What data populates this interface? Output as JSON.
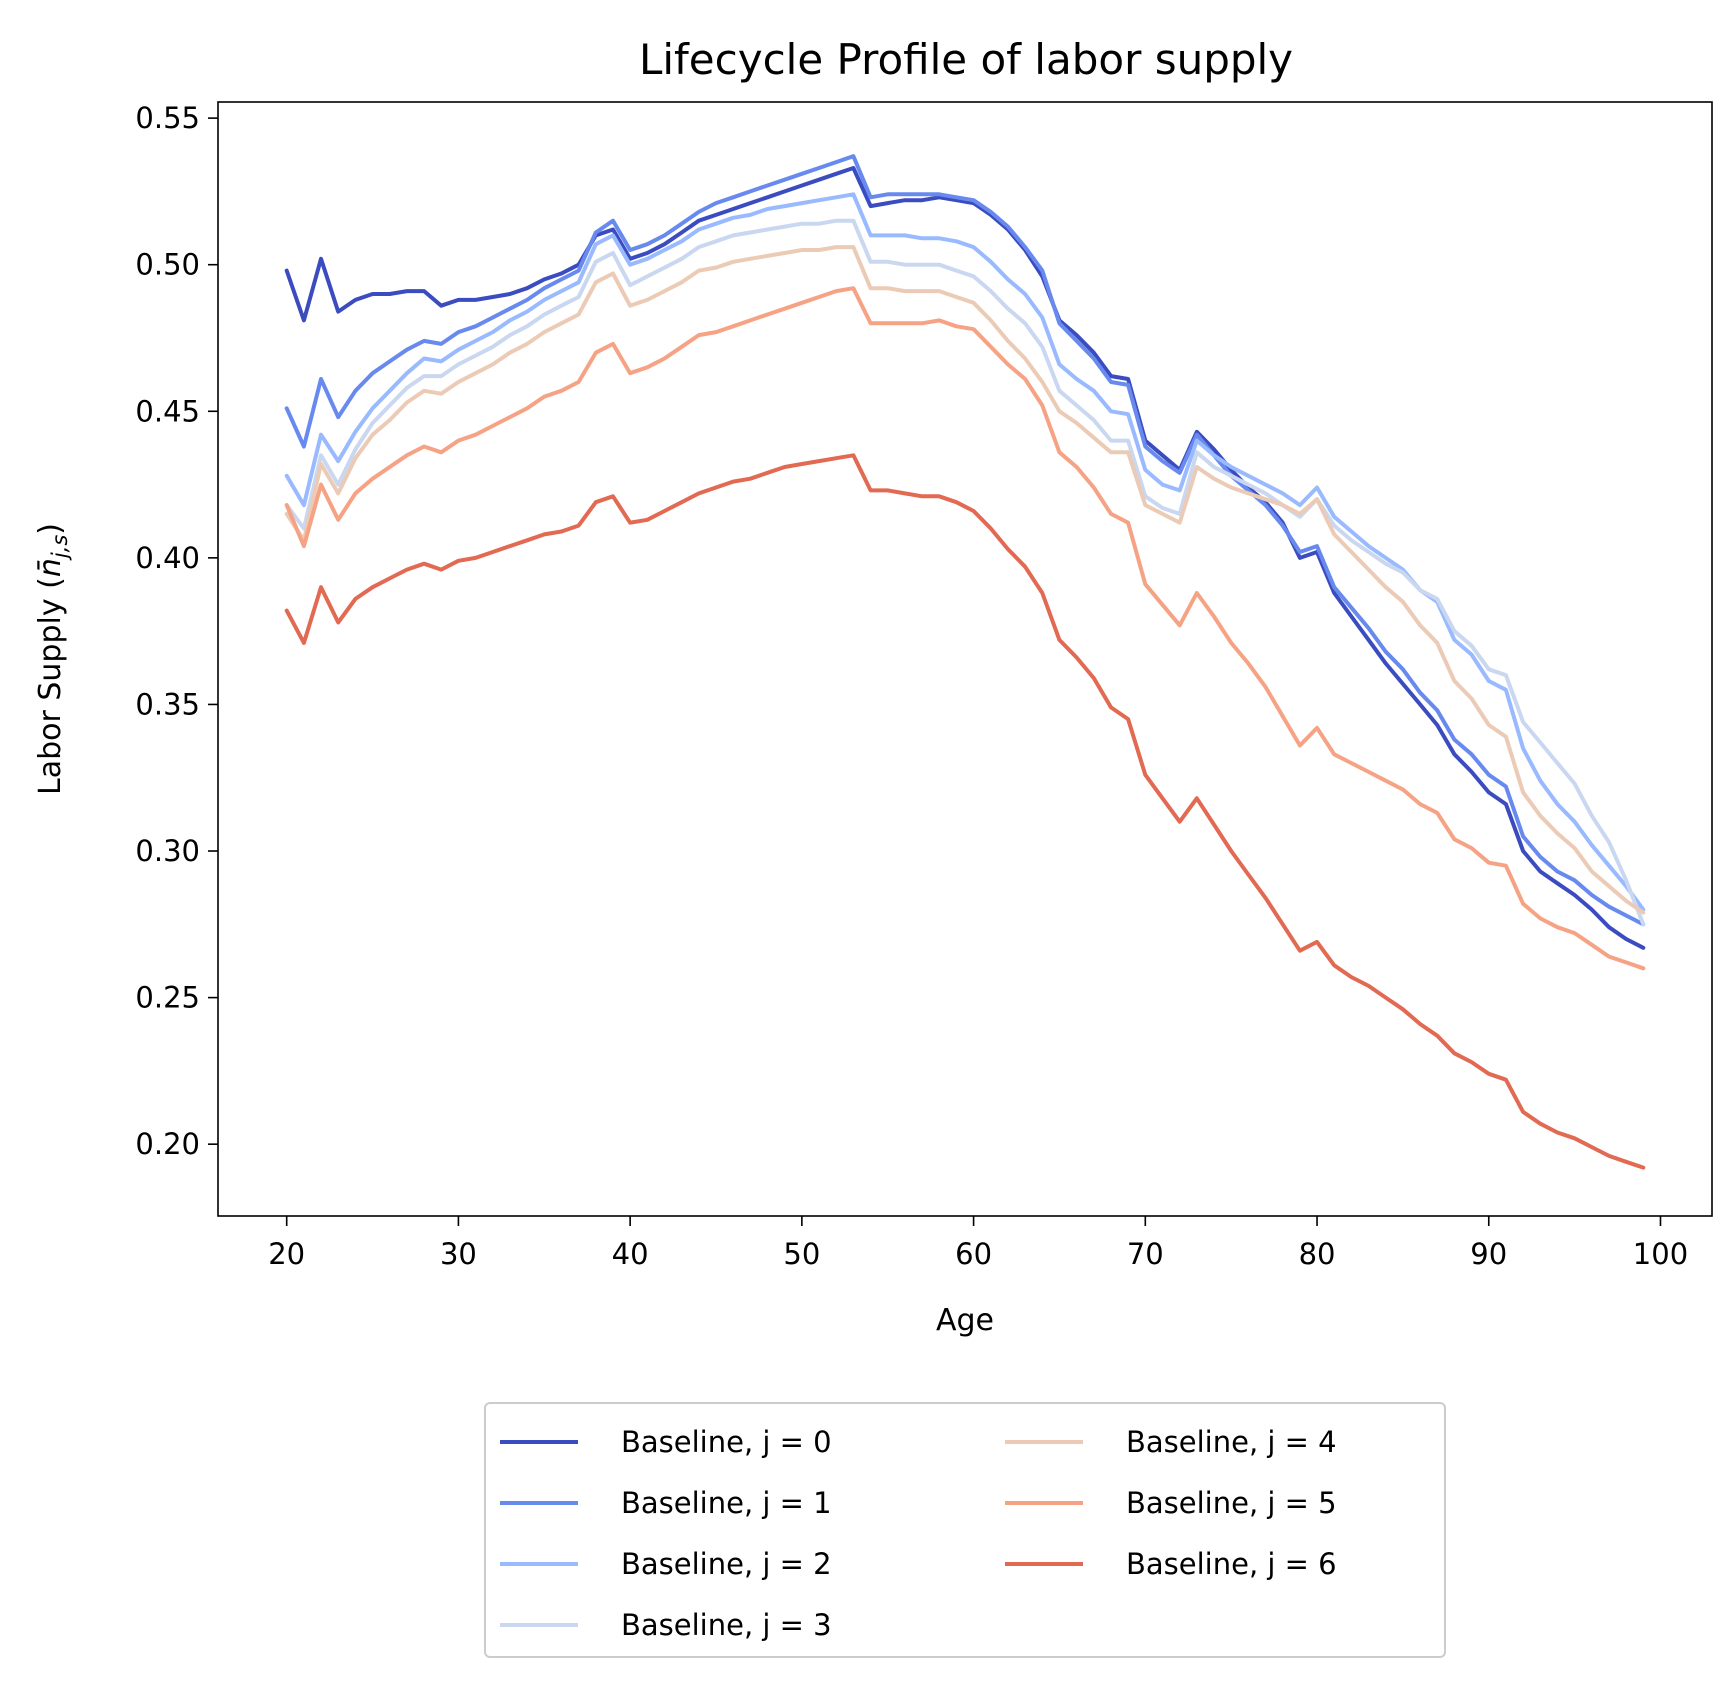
{
  "chart_data": {
    "type": "line",
    "title": "Lifecycle Profile of labor supply",
    "xlabel": "Age",
    "ylabel": "Labor Supply",
    "ylabel_symbol": "n̄",
    "ylabel_subscript": "j,s",
    "xlim": [
      16,
      103
    ],
    "ylim": [
      0.1755,
      0.5555
    ],
    "xticks": [
      20,
      30,
      40,
      50,
      60,
      70,
      80,
      90,
      100
    ],
    "yticks": [
      0.2,
      0.25,
      0.3,
      0.35,
      0.4,
      0.45,
      0.5,
      0.55
    ],
    "legend_position": "below",
    "grid": false,
    "x": [
      20,
      21,
      22,
      23,
      24,
      25,
      26,
      27,
      28,
      29,
      30,
      31,
      32,
      33,
      34,
      35,
      36,
      37,
      38,
      39,
      40,
      41,
      42,
      43,
      44,
      45,
      46,
      47,
      48,
      49,
      50,
      51,
      52,
      53,
      54,
      55,
      56,
      57,
      58,
      59,
      60,
      61,
      62,
      63,
      64,
      65,
      66,
      67,
      68,
      69,
      70,
      71,
      72,
      73,
      74,
      75,
      76,
      77,
      78,
      79,
      80,
      81,
      82,
      83,
      84,
      85,
      86,
      87,
      88,
      89,
      90,
      91,
      92,
      93,
      94,
      95,
      96,
      97,
      98,
      99
    ],
    "series": [
      {
        "name": "Baseline, j = 0",
        "color": "#3b4cc0",
        "values": [
          0.498,
          0.481,
          0.502,
          0.484,
          0.488,
          0.49,
          0.49,
          0.491,
          0.491,
          0.486,
          0.488,
          0.488,
          0.489,
          0.49,
          0.492,
          0.495,
          0.497,
          0.5,
          0.51,
          0.512,
          0.502,
          0.504,
          0.507,
          0.511,
          0.515,
          0.517,
          0.519,
          0.521,
          0.523,
          0.525,
          0.527,
          0.529,
          0.531,
          0.533,
          0.52,
          0.521,
          0.522,
          0.522,
          0.523,
          0.522,
          0.521,
          0.517,
          0.512,
          0.505,
          0.496,
          0.481,
          0.476,
          0.47,
          0.462,
          0.461,
          0.44,
          0.435,
          0.43,
          0.443,
          0.437,
          0.43,
          0.424,
          0.419,
          0.412,
          0.4,
          0.402,
          0.388,
          0.38,
          0.372,
          0.364,
          0.357,
          0.35,
          0.343,
          0.333,
          0.327,
          0.32,
          0.316,
          0.3,
          0.293,
          0.289,
          0.285,
          0.28,
          0.274,
          0.27,
          0.267
        ]
      },
      {
        "name": "Baseline, j = 1",
        "color": "#688aef",
        "values": [
          0.451,
          0.438,
          0.461,
          0.448,
          0.457,
          0.463,
          0.467,
          0.471,
          0.474,
          0.473,
          0.477,
          0.479,
          0.482,
          0.485,
          0.488,
          0.492,
          0.495,
          0.498,
          0.511,
          0.515,
          0.505,
          0.507,
          0.51,
          0.514,
          0.518,
          0.521,
          0.523,
          0.525,
          0.527,
          0.529,
          0.531,
          0.533,
          0.535,
          0.537,
          0.523,
          0.524,
          0.524,
          0.524,
          0.524,
          0.523,
          0.522,
          0.518,
          0.513,
          0.506,
          0.498,
          0.48,
          0.474,
          0.468,
          0.46,
          0.459,
          0.438,
          0.433,
          0.429,
          0.442,
          0.435,
          0.428,
          0.423,
          0.418,
          0.411,
          0.402,
          0.404,
          0.39,
          0.383,
          0.376,
          0.368,
          0.362,
          0.354,
          0.348,
          0.338,
          0.333,
          0.326,
          0.322,
          0.305,
          0.298,
          0.293,
          0.29,
          0.285,
          0.281,
          0.278,
          0.275
        ]
      },
      {
        "name": "Baseline, j = 2",
        "color": "#99baff",
        "values": [
          0.428,
          0.418,
          0.442,
          0.433,
          0.443,
          0.451,
          0.457,
          0.463,
          0.468,
          0.467,
          0.471,
          0.474,
          0.477,
          0.481,
          0.484,
          0.488,
          0.491,
          0.494,
          0.507,
          0.51,
          0.5,
          0.502,
          0.505,
          0.508,
          0.512,
          0.514,
          0.516,
          0.517,
          0.519,
          0.52,
          0.521,
          0.522,
          0.523,
          0.524,
          0.51,
          0.51,
          0.51,
          0.509,
          0.509,
          0.508,
          0.506,
          0.501,
          0.495,
          0.49,
          0.482,
          0.466,
          0.461,
          0.457,
          0.45,
          0.449,
          0.43,
          0.425,
          0.423,
          0.44,
          0.435,
          0.431,
          0.428,
          0.425,
          0.422,
          0.418,
          0.424,
          0.414,
          0.409,
          0.404,
          0.4,
          0.396,
          0.389,
          0.385,
          0.372,
          0.367,
          0.358,
          0.355,
          0.335,
          0.324,
          0.316,
          0.31,
          0.302,
          0.295,
          0.288,
          0.28
        ]
      },
      {
        "name": "Baseline, j = 3",
        "color": "#c9d7f0",
        "values": [
          0.418,
          0.41,
          0.435,
          0.425,
          0.437,
          0.446,
          0.452,
          0.458,
          0.462,
          0.462,
          0.466,
          0.469,
          0.472,
          0.476,
          0.479,
          0.483,
          0.486,
          0.489,
          0.501,
          0.504,
          0.493,
          0.496,
          0.499,
          0.502,
          0.506,
          0.508,
          0.51,
          0.511,
          0.512,
          0.513,
          0.514,
          0.514,
          0.515,
          0.515,
          0.501,
          0.501,
          0.5,
          0.5,
          0.5,
          0.498,
          0.496,
          0.491,
          0.485,
          0.48,
          0.472,
          0.457,
          0.452,
          0.447,
          0.44,
          0.44,
          0.421,
          0.417,
          0.415,
          0.436,
          0.431,
          0.428,
          0.425,
          0.422,
          0.418,
          0.414,
          0.42,
          0.411,
          0.406,
          0.402,
          0.398,
          0.395,
          0.389,
          0.386,
          0.375,
          0.37,
          0.362,
          0.36,
          0.344,
          0.337,
          0.33,
          0.323,
          0.312,
          0.303,
          0.29,
          0.275
        ]
      },
      {
        "name": "Baseline, j = 4",
        "color": "#eccbb6",
        "values": [
          0.415,
          0.406,
          0.432,
          0.422,
          0.434,
          0.442,
          0.447,
          0.453,
          0.457,
          0.456,
          0.46,
          0.463,
          0.466,
          0.47,
          0.473,
          0.477,
          0.48,
          0.483,
          0.494,
          0.497,
          0.486,
          0.488,
          0.491,
          0.494,
          0.498,
          0.499,
          0.501,
          0.502,
          0.503,
          0.504,
          0.505,
          0.505,
          0.506,
          0.506,
          0.492,
          0.492,
          0.491,
          0.491,
          0.491,
          0.489,
          0.487,
          0.481,
          0.474,
          0.468,
          0.46,
          0.45,
          0.446,
          0.441,
          0.436,
          0.436,
          0.418,
          0.415,
          0.412,
          0.431,
          0.427,
          0.424,
          0.422,
          0.42,
          0.418,
          0.415,
          0.42,
          0.408,
          0.402,
          0.396,
          0.39,
          0.385,
          0.377,
          0.371,
          0.358,
          0.352,
          0.343,
          0.339,
          0.32,
          0.312,
          0.306,
          0.301,
          0.293,
          0.288,
          0.283,
          0.279
        ]
      },
      {
        "name": "Baseline, j = 5",
        "color": "#f6a385",
        "values": [
          0.418,
          0.404,
          0.425,
          0.413,
          0.422,
          0.427,
          0.431,
          0.435,
          0.438,
          0.436,
          0.44,
          0.442,
          0.445,
          0.448,
          0.451,
          0.455,
          0.457,
          0.46,
          0.47,
          0.473,
          0.463,
          0.465,
          0.468,
          0.472,
          0.476,
          0.477,
          0.479,
          0.481,
          0.483,
          0.485,
          0.487,
          0.489,
          0.491,
          0.492,
          0.48,
          0.48,
          0.48,
          0.48,
          0.481,
          0.479,
          0.478,
          0.472,
          0.466,
          0.461,
          0.452,
          0.436,
          0.431,
          0.424,
          0.415,
          0.412,
          0.391,
          0.384,
          0.377,
          0.388,
          0.38,
          0.371,
          0.364,
          0.356,
          0.346,
          0.336,
          0.342,
          0.333,
          0.33,
          0.327,
          0.324,
          0.321,
          0.316,
          0.313,
          0.304,
          0.301,
          0.296,
          0.295,
          0.282,
          0.277,
          0.274,
          0.272,
          0.268,
          0.264,
          0.262,
          0.26
        ]
      },
      {
        "name": "Baseline, j = 6",
        "color": "#e26952",
        "values": [
          0.382,
          0.371,
          0.39,
          0.378,
          0.386,
          0.39,
          0.393,
          0.396,
          0.398,
          0.396,
          0.399,
          0.4,
          0.402,
          0.404,
          0.406,
          0.408,
          0.409,
          0.411,
          0.419,
          0.421,
          0.412,
          0.413,
          0.416,
          0.419,
          0.422,
          0.424,
          0.426,
          0.427,
          0.429,
          0.431,
          0.432,
          0.433,
          0.434,
          0.435,
          0.423,
          0.423,
          0.422,
          0.421,
          0.421,
          0.419,
          0.416,
          0.41,
          0.403,
          0.397,
          0.388,
          0.372,
          0.366,
          0.359,
          0.349,
          0.345,
          0.326,
          0.318,
          0.31,
          0.318,
          0.309,
          0.3,
          0.292,
          0.284,
          0.275,
          0.266,
          0.269,
          0.261,
          0.257,
          0.254,
          0.25,
          0.246,
          0.241,
          0.237,
          0.231,
          0.228,
          0.224,
          0.222,
          0.211,
          0.207,
          0.204,
          0.202,
          0.199,
          0.196,
          0.194,
          0.192
        ]
      }
    ]
  }
}
